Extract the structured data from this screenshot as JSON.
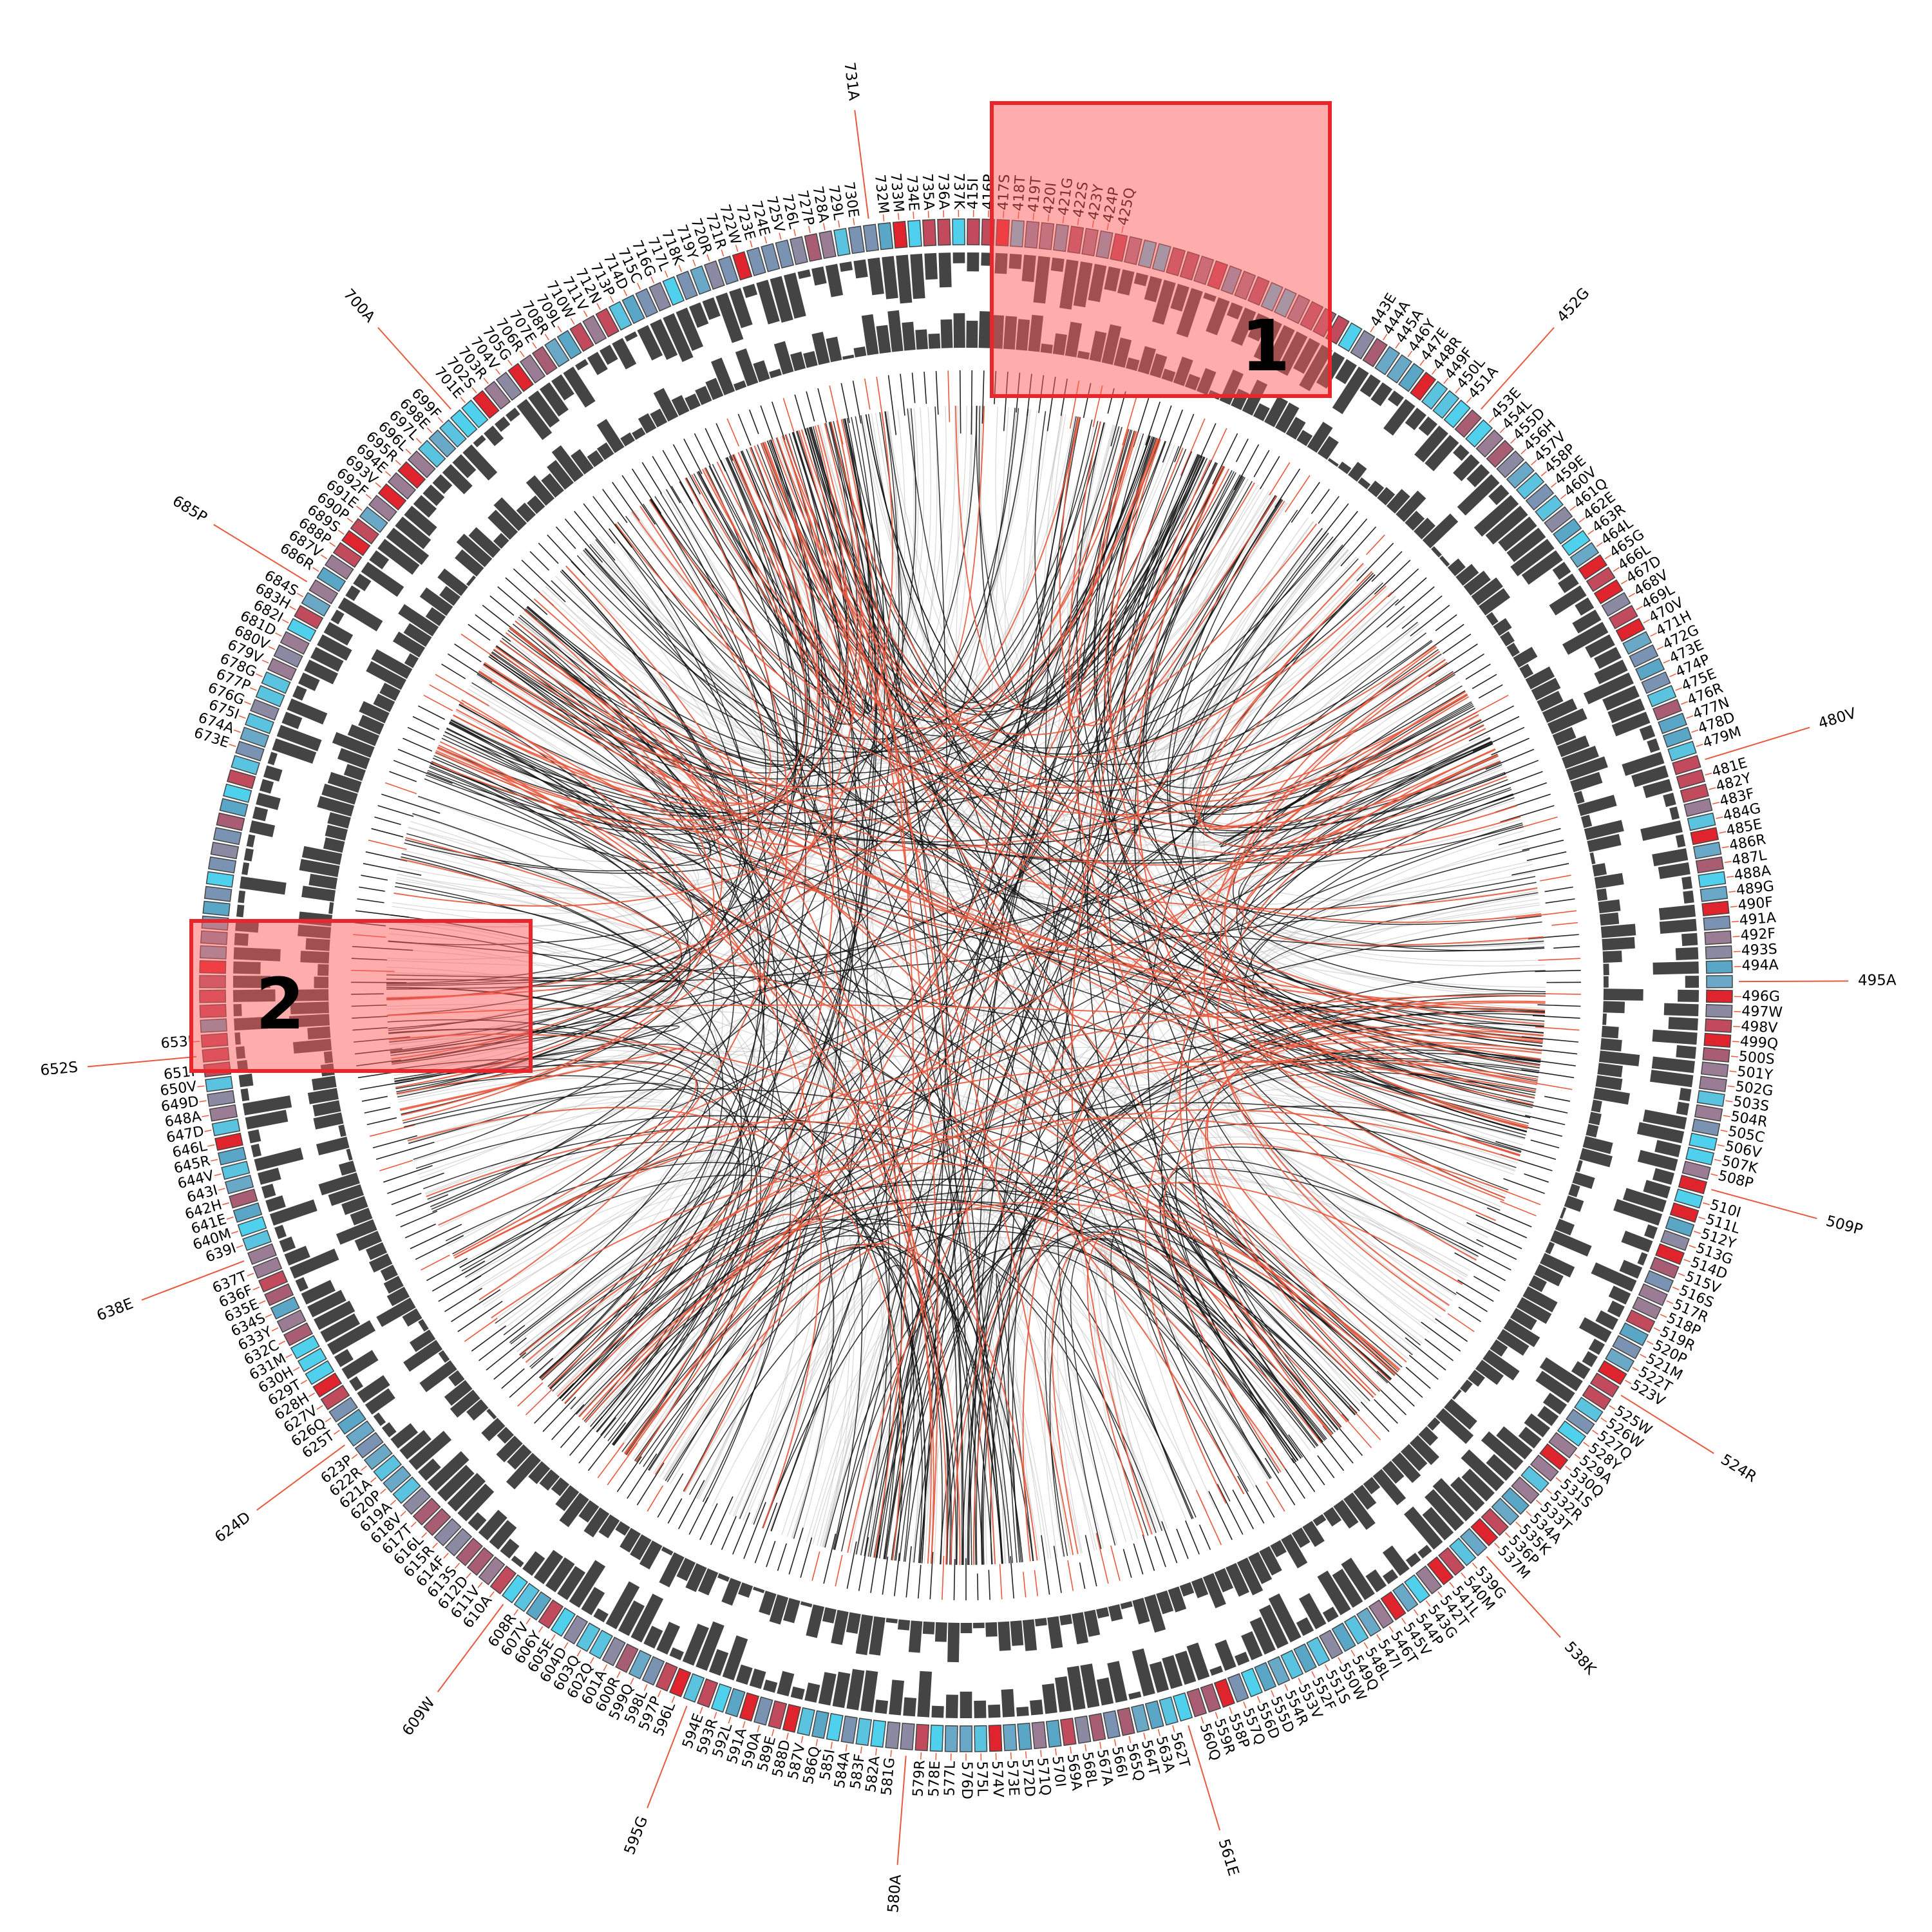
{
  "diagram": {
    "residue_range": [
      415,
      737
    ],
    "major_labels": [
      "731A",
      "700A",
      "685P",
      "652S",
      "638E",
      "624D",
      "609W",
      "595G",
      "580A",
      "561E",
      "538K",
      "524R",
      "509P",
      "495A",
      "480V",
      "452G"
    ],
    "regions": [
      {
        "label": "1"
      },
      {
        "label": "2"
      }
    ],
    "residue_names": {
      "415": "I",
      "416": "P",
      "417": "S",
      "418": "T",
      "419": "T",
      "420": "I",
      "421": "G",
      "422": "S",
      "423": "Y",
      "424": "P",
      "425": "Q",
      "443": "E",
      "444": "A",
      "445": "A",
      "446": "Y",
      "447": "E",
      "448": "R",
      "449": "F",
      "450": "L",
      "451": "A",
      "452": "G",
      "453": "E",
      "454": "L",
      "455": "D",
      "456": "H",
      "457": "V",
      "458": "P",
      "459": "E",
      "460": "V",
      "461": "Q",
      "462": "E",
      "463": "R",
      "464": "L",
      "465": "G",
      "466": "L",
      "467": "D",
      "468": "V",
      "469": "L",
      "470": "V",
      "471": "H",
      "472": "G",
      "473": "E",
      "474": "P",
      "475": "E",
      "476": "R",
      "477": "N",
      "478": "D",
      "479": "M",
      "480": "V",
      "481": "E",
      "482": "Y",
      "483": "F",
      "484": "G",
      "485": "E",
      "486": "R",
      "487": "L",
      "488": "A",
      "489": "G",
      "490": "F",
      "491": "A",
      "492": "F",
      "493": "S",
      "494": "A",
      "495": "A",
      "496": "G",
      "497": "W",
      "498": "V",
      "499": "Q",
      "500": "S",
      "501": "Y",
      "502": "G",
      "503": "S",
      "504": "R",
      "505": "C",
      "506": "V",
      "507": "K",
      "508": "P",
      "509": "P",
      "510": "I",
      "511": "L",
      "512": "Y",
      "513": "G",
      "514": "D",
      "515": "V",
      "516": "S",
      "517": "R",
      "518": "P",
      "519": "R",
      "520": "P",
      "521": "M",
      "522": "T",
      "523": "V",
      "524": "R",
      "525": "W",
      "526": "W",
      "527": "Q",
      "528": "Y",
      "529": "A",
      "530": "Q",
      "531": "S",
      "532": "R",
      "533": "T",
      "534": "A",
      "535": "K",
      "536": "P",
      "537": "M",
      "538": "K",
      "539": "G",
      "540": "M",
      "541": "L",
      "542": "T",
      "543": "G",
      "544": "P",
      "545": "V",
      "546": "T",
      "547": "I",
      "548": "L",
      "549": "Q",
      "550": "W",
      "551": "S",
      "552": "F",
      "553": "V",
      "554": "R",
      "555": "D",
      "556": "D",
      "557": "Q",
      "558": "P",
      "559": "R",
      "560": "Q",
      "561": "E",
      "562": "T",
      "563": "A",
      "564": "T",
      "565": "Q",
      "566": "I",
      "567": "A",
      "568": "L",
      "569": "A",
      "570": "I",
      "571": "Q",
      "572": "D",
      "573": "E",
      "574": "V",
      "575": "L",
      "576": "D",
      "577": "L",
      "578": "E",
      "579": "R",
      "580": "A",
      "581": "G",
      "582": "A",
      "583": "F",
      "584": "A",
      "585": "I",
      "586": "Q",
      "587": "V",
      "588": "D",
      "589": "E",
      "590": "A",
      "591": "A",
      "592": "L",
      "593": "R",
      "594": "E",
      "595": "G",
      "596": "L",
      "597": "P",
      "598": "L",
      "599": "Q",
      "600": "R",
      "601": "A",
      "602": "Q",
      "603": "Q",
      "604": "D",
      "605": "E",
      "606": "Y",
      "607": "V",
      "608": "R",
      "609": "W",
      "610": "A",
      "611": "V",
      "612": "D",
      "613": "S",
      "614": "F",
      "615": "R",
      "616": "L",
      "617": "T",
      "618": "V",
      "619": "A",
      "620": "P",
      "621": "A",
      "622": "R",
      "623": "P",
      "624": "D",
      "625": "T",
      "626": "Q",
      "627": "V",
      "628": "H",
      "629": "T",
      "630": "H",
      "631": "M",
      "632": "C",
      "633": "Y",
      "634": "S",
      "635": "E",
      "636": "F",
      "637": "T",
      "638": "E",
      "639": "I",
      "640": "M",
      "641": "E",
      "642": "H",
      "643": "I",
      "644": "V",
      "645": "R",
      "646": "L",
      "647": "D",
      "648": "A",
      "649": "D",
      "650": "V",
      "651": "I",
      "652": "S",
      "653": "I",
      "673": "E",
      "674": "A",
      "675": "I",
      "676": "G",
      "677": "P",
      "678": "G",
      "679": "V",
      "680": "V",
      "681": "D",
      "682": "I",
      "683": "H",
      "684": "S",
      "685": "P",
      "686": "R",
      "687": "V",
      "688": "P",
      "689": "S",
      "690": "P",
      "691": "E",
      "692": "F",
      "693": "V",
      "694": "E",
      "695": "R",
      "696": "L",
      "697": "L",
      "698": "E",
      "699": "F",
      "700": "A",
      "701": "E",
      "702": "S",
      "703": "R",
      "704": "V",
      "705": "G",
      "706": "R",
      "707": "E",
      "708": "R",
      "709": "L",
      "710": "W",
      "711": "V",
      "712": "N",
      "713": "P",
      "714": "D",
      "715": "C",
      "716": "G",
      "717": "L",
      "718": "K",
      "719": "Y",
      "720": "R",
      "721": "R",
      "722": "W",
      "723": "E",
      "724": "E",
      "725": "V",
      "726": "L",
      "727": "P",
      "728": "A",
      "729": "L",
      "730": "E",
      "731": "A",
      "732": "M",
      "733": "M",
      "734": "E",
      "735": "A",
      "736": "A",
      "737": "K"
    }
  }
}
